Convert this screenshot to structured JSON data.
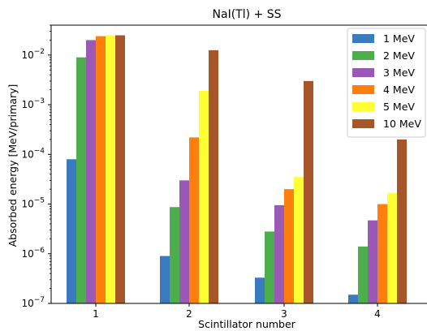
{
  "chart_data": {
    "type": "bar",
    "title": "NaI(Tl) + SS",
    "xlabel": "Scintillator number",
    "ylabel": "Absorbed energy [MeV/primary]",
    "yscale": "log",
    "ylim": [
      1e-07,
      0.04
    ],
    "grid": false,
    "legend_position": "top-right",
    "categories": [
      "1",
      "2",
      "3",
      "4"
    ],
    "y_ticks": [
      {
        "value": 1e-07,
        "label_base": "10",
        "label_exp": "−7"
      },
      {
        "value": 1e-06,
        "label_base": "10",
        "label_exp": "−6"
      },
      {
        "value": 1e-05,
        "label_base": "10",
        "label_exp": "−5"
      },
      {
        "value": 0.0001,
        "label_base": "10",
        "label_exp": "−4"
      },
      {
        "value": 0.001,
        "label_base": "10",
        "label_exp": "−3"
      },
      {
        "value": 0.01,
        "label_base": "10",
        "label_exp": "−2"
      }
    ],
    "series": [
      {
        "name": "1 MeV",
        "color": "#3a7bbf",
        "values": [
          8e-05,
          9e-07,
          3.3e-07,
          1.5e-07
        ]
      },
      {
        "name": "2 MeV",
        "color": "#4cae4c",
        "values": [
          0.009,
          8.7e-06,
          2.8e-06,
          1.4e-06
        ]
      },
      {
        "name": "3 MeV",
        "color": "#9b59b6",
        "values": [
          0.02,
          3e-05,
          9.5e-06,
          4.7e-06
        ]
      },
      {
        "name": "4 MeV",
        "color": "#ff7f0e",
        "values": [
          0.024,
          0.00022,
          2e-05,
          1e-05
        ]
      },
      {
        "name": "5 MeV",
        "color": "#ffff33",
        "values": [
          0.025,
          0.0019,
          3.5e-05,
          1.65e-05
        ]
      },
      {
        "name": "10 MeV",
        "color": "#a65628",
        "values": [
          0.025,
          0.0125,
          0.003,
          0.0002
        ]
      }
    ]
  }
}
